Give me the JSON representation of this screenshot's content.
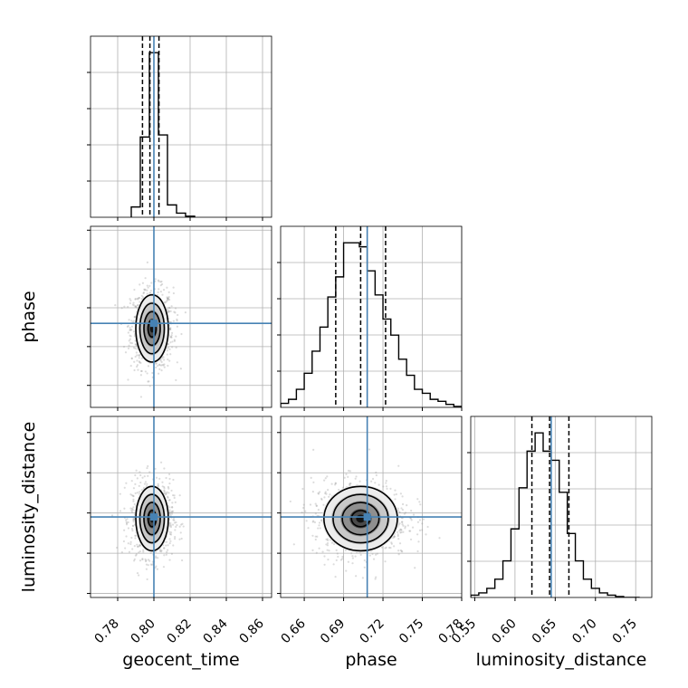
{
  "figure": {
    "parameters": [
      "geocent_time",
      "phase",
      "luminosity_distance"
    ],
    "axis_labels": [
      "geocent_time",
      "phase",
      "luminosity_distance"
    ],
    "truth_color": "#4682b4",
    "line_color": "#000000",
    "grid": true
  },
  "chart_data": [
    {
      "type": "histogram",
      "name": "geocent_time marginal",
      "xlim": [
        0.765,
        0.865
      ],
      "bin_edges": [
        0.7875,
        0.7925,
        0.7975,
        0.8025,
        0.8075,
        0.8125,
        0.8175,
        0.8225
      ],
      "values": [
        0.5,
        3.9,
        8.0,
        4.0,
        0.6,
        0.2,
        0.05
      ],
      "quantiles": [
        0.7937,
        0.7978,
        0.8028
      ],
      "truth": 0.8,
      "xticks": [
        0.78,
        0.8,
        0.82,
        0.84,
        0.86
      ]
    },
    {
      "type": "scatter",
      "name": "geocent_time vs phase",
      "x_param": "geocent_time",
      "y_param": "phase",
      "xlim": [
        0.765,
        0.865
      ],
      "ylim": [
        0.643,
        0.783
      ],
      "yticks": [
        0.66,
        0.69,
        0.72,
        0.75,
        0.78
      ],
      "ytick_labels": [
        "0.66",
        "0.69",
        "0.72",
        "0.75",
        "0.78"
      ],
      "center": [
        0.799,
        0.704
      ],
      "sigma": [
        0.0045,
        0.013
      ],
      "truth": [
        0.8,
        0.708
      ]
    },
    {
      "type": "histogram",
      "name": "phase marginal",
      "xlim": [
        0.642,
        0.78
      ],
      "bin_edges": [
        0.642,
        0.648,
        0.654,
        0.66,
        0.666,
        0.672,
        0.678,
        0.684,
        0.69,
        0.696,
        0.702,
        0.708,
        0.714,
        0.72,
        0.726,
        0.732,
        0.738,
        0.744,
        0.75,
        0.756,
        0.762,
        0.768,
        0.774,
        0.78
      ],
      "values": [
        0.2,
        0.4,
        0.9,
        1.7,
        2.8,
        4.0,
        5.5,
        6.5,
        8.2,
        8.2,
        8.0,
        6.8,
        5.6,
        4.4,
        3.6,
        2.4,
        1.6,
        0.9,
        0.7,
        0.4,
        0.3,
        0.15,
        0.05
      ],
      "quantiles": [
        0.684,
        0.703,
        0.722
      ],
      "truth": 0.708,
      "xticks": [
        0.66,
        0.69,
        0.72,
        0.75,
        0.78
      ]
    },
    {
      "type": "scatter",
      "name": "geocent_time vs luminosity_distance",
      "x_param": "geocent_time",
      "y_param": "luminosity_distance",
      "xlim": [
        0.765,
        0.865
      ],
      "ylim": [
        0.545,
        0.77
      ],
      "yticks": [
        0.55,
        0.6,
        0.65,
        0.7,
        0.75
      ],
      "ytick_labels": [
        "0.55",
        "0.60",
        "0.65",
        "0.70",
        "0.75"
      ],
      "center": [
        0.799,
        0.643
      ],
      "sigma": [
        0.0045,
        0.02
      ],
      "truth": [
        0.8,
        0.645
      ]
    },
    {
      "type": "scatter",
      "name": "phase vs luminosity_distance",
      "x_param": "phase",
      "y_param": "luminosity_distance",
      "xlim": [
        0.642,
        0.78
      ],
      "ylim": [
        0.545,
        0.77
      ],
      "xticks": [
        0.66,
        0.69,
        0.72,
        0.75,
        0.78
      ],
      "xtick_labels": [
        "0.66",
        "0.69",
        "0.72",
        "0.75",
        "0.78"
      ],
      "center": [
        0.703,
        0.643
      ],
      "sigma": [
        0.014,
        0.02
      ],
      "truth": [
        0.708,
        0.645
      ]
    },
    {
      "type": "histogram",
      "name": "luminosity_distance marginal",
      "xlim": [
        0.545,
        0.77
      ],
      "bin_edges": [
        0.545,
        0.555,
        0.565,
        0.575,
        0.585,
        0.595,
        0.605,
        0.615,
        0.625,
        0.635,
        0.645,
        0.655,
        0.665,
        0.675,
        0.685,
        0.695,
        0.705,
        0.715,
        0.725,
        0.735,
        0.745,
        0.755
      ],
      "values": [
        0.05,
        0.1,
        0.2,
        0.4,
        0.8,
        1.5,
        2.4,
        3.2,
        3.6,
        3.2,
        3.0,
        2.3,
        1.4,
        0.8,
        0.4,
        0.2,
        0.1,
        0.05,
        0.02,
        0.0,
        0.0
      ],
      "quantiles": [
        0.621,
        0.643,
        0.667
      ],
      "truth": 0.645,
      "xticks": [
        0.55,
        0.6,
        0.65,
        0.7,
        0.75
      ],
      "xtick_labels": [
        "0.55",
        "0.60",
        "0.65",
        "0.70",
        "0.75"
      ]
    }
  ]
}
